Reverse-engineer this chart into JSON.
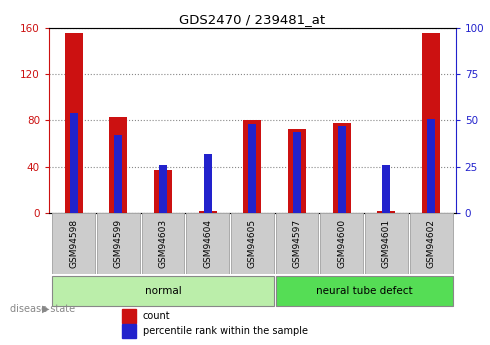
{
  "title": "GDS2470 / 239481_at",
  "samples": [
    "GSM94598",
    "GSM94599",
    "GSM94603",
    "GSM94604",
    "GSM94605",
    "GSM94597",
    "GSM94600",
    "GSM94601",
    "GSM94602"
  ],
  "count_values": [
    155,
    83,
    37,
    2,
    80,
    73,
    78,
    2,
    155
  ],
  "percentile_values": [
    54,
    42,
    26,
    32,
    48,
    44,
    47,
    26,
    51
  ],
  "groups": [
    {
      "label": "normal",
      "start": 0,
      "end": 5,
      "color": "#bbeeaa"
    },
    {
      "label": "neural tube defect",
      "start": 5,
      "end": 9,
      "color": "#55dd55"
    }
  ],
  "left_ylim": [
    0,
    160
  ],
  "right_ylim": [
    0,
    100
  ],
  "left_yticks": [
    0,
    40,
    80,
    120,
    160
  ],
  "right_yticks": [
    0,
    25,
    50,
    75,
    100
  ],
  "left_tick_labels": [
    "0",
    "40",
    "80",
    "120",
    "160"
  ],
  "right_tick_labels": [
    "0",
    "25",
    "50",
    "75",
    "100"
  ],
  "bar_color_red": "#cc1111",
  "bar_color_blue": "#2222cc",
  "tick_bg_color": "#cccccc",
  "legend_count_label": "count",
  "legend_pct_label": "percentile rank within the sample",
  "disease_state_label": "disease state",
  "arrow_symbol": "▶"
}
